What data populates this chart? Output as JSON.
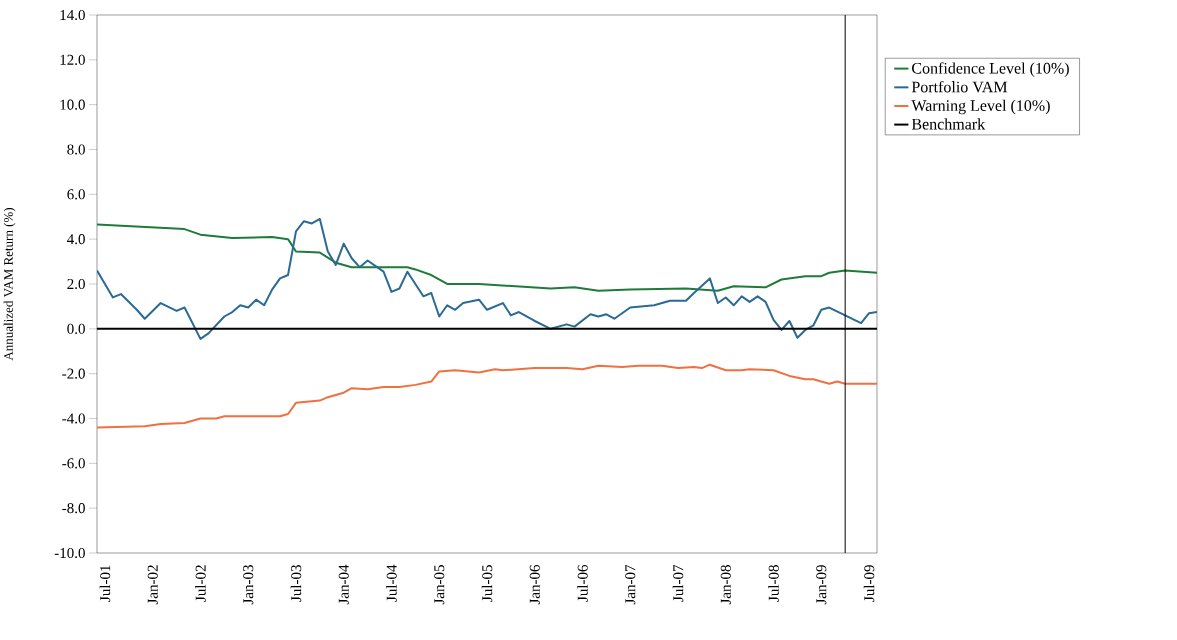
{
  "chart_data": {
    "type": "line",
    "ylabel": "Annualized VAM Return (%)",
    "xlim": [
      "2001-06",
      "2009-08"
    ],
    "ylim": [
      -10,
      14
    ],
    "xticks": [
      {
        "value": "2001-07",
        "label": "Jul-01"
      },
      {
        "value": "2002-01",
        "label": "Jan-02"
      },
      {
        "value": "2002-07",
        "label": "Jul-02"
      },
      {
        "value": "2003-01",
        "label": "Jan-03"
      },
      {
        "value": "2003-07",
        "label": "Jul-03"
      },
      {
        "value": "2004-01",
        "label": "Jan-04"
      },
      {
        "value": "2004-07",
        "label": "Jul-04"
      },
      {
        "value": "2005-01",
        "label": "Jan-05"
      },
      {
        "value": "2005-07",
        "label": "Jul-05"
      },
      {
        "value": "2006-01",
        "label": "Jan-06"
      },
      {
        "value": "2006-07",
        "label": "Jul-06"
      },
      {
        "value": "2007-01",
        "label": "Jan-07"
      },
      {
        "value": "2007-07",
        "label": "Jul-07"
      },
      {
        "value": "2008-01",
        "label": "Jan-08"
      },
      {
        "value": "2008-07",
        "label": "Jul-08"
      },
      {
        "value": "2009-01",
        "label": "Jan-09"
      },
      {
        "value": "2009-07",
        "label": "Jul-09"
      }
    ],
    "yticks": [
      {
        "value": -10,
        "label": "-10.0"
      },
      {
        "value": -8,
        "label": "-8.0"
      },
      {
        "value": -6,
        "label": "-6.0"
      },
      {
        "value": -4,
        "label": "-4.0"
      },
      {
        "value": -2,
        "label": "-2.0"
      },
      {
        "value": 0,
        "label": "0.0"
      },
      {
        "value": 2,
        "label": "2.0"
      },
      {
        "value": 4,
        "label": "4.0"
      },
      {
        "value": 6,
        "label": "6.0"
      },
      {
        "value": 8,
        "label": "8.0"
      },
      {
        "value": 10,
        "label": "10.0"
      },
      {
        "value": 12,
        "label": "12.0"
      },
      {
        "value": 14,
        "label": "14.0"
      }
    ],
    "legend": "right",
    "marker": "none",
    "line_style": "solid",
    "ref_lines": [
      {
        "axis": "x",
        "value": "2009-04",
        "color": "#000000"
      }
    ],
    "series": [
      {
        "name": "Confidence Level (10%)",
        "color": "#1e7b3a",
        "x": [
          "2001-06",
          "2002-05",
          "2002-07",
          "2002-11",
          "2003-04",
          "2003-06",
          "2003-07",
          "2003-10",
          "2003-12",
          "2004-02",
          "2004-09",
          "2004-10",
          "2004-12",
          "2005-02",
          "2005-06",
          "2006-03",
          "2006-06",
          "2006-09",
          "2007-01",
          "2007-08",
          "2007-12",
          "2008-02",
          "2008-06",
          "2008-08",
          "2008-11",
          "2009-01",
          "2009-02",
          "2009-04",
          "2009-08"
        ],
        "values": [
          4.65,
          4.45,
          4.2,
          4.05,
          4.1,
          4.0,
          3.45,
          3.4,
          2.95,
          2.75,
          2.75,
          2.65,
          2.4,
          2.0,
          2.0,
          1.8,
          1.85,
          1.7,
          1.75,
          1.8,
          1.7,
          1.9,
          1.85,
          2.2,
          2.35,
          2.35,
          2.5,
          2.6,
          2.5
        ]
      },
      {
        "name": "Portfolio VAM",
        "color": "#2a6a94",
        "x": [
          "2001-06",
          "2001-08",
          "2001-09",
          "2001-11",
          "2001-12",
          "2002-02",
          "2002-04",
          "2002-05",
          "2002-07",
          "2002-08",
          "2002-10",
          "2002-11",
          "2002-12",
          "2003-01",
          "2003-02",
          "2003-03",
          "2003-04",
          "2003-05",
          "2003-06",
          "2003-07",
          "2003-08",
          "2003-09",
          "2003-10",
          "2003-11",
          "2003-12",
          "2004-01",
          "2004-02",
          "2004-03",
          "2004-04",
          "2004-06",
          "2004-07",
          "2004-08",
          "2004-09",
          "2004-11",
          "2004-12",
          "2005-01",
          "2005-02",
          "2005-03",
          "2005-04",
          "2005-06",
          "2005-07",
          "2005-09",
          "2005-10",
          "2005-11",
          "2006-01",
          "2006-03",
          "2006-05",
          "2006-06",
          "2006-08",
          "2006-09",
          "2006-10",
          "2006-11",
          "2007-01",
          "2007-04",
          "2007-06",
          "2007-08",
          "2007-09",
          "2007-11",
          "2007-12",
          "2008-01",
          "2008-02",
          "2008-03",
          "2008-04",
          "2008-05",
          "2008-06",
          "2008-07",
          "2008-08",
          "2008-09",
          "2008-10",
          "2008-11",
          "2008-12",
          "2009-01",
          "2009-02",
          "2009-04",
          "2009-06",
          "2009-07",
          "2009-08"
        ],
        "values": [
          2.6,
          1.4,
          1.55,
          0.85,
          0.45,
          1.15,
          0.8,
          0.95,
          -0.45,
          -0.2,
          0.55,
          0.75,
          1.05,
          0.95,
          1.3,
          1.05,
          1.75,
          2.25,
          2.4,
          4.35,
          4.8,
          4.7,
          4.9,
          3.45,
          2.85,
          3.8,
          3.15,
          2.75,
          3.05,
          2.55,
          1.65,
          1.8,
          2.55,
          1.45,
          1.6,
          0.55,
          1.05,
          0.85,
          1.15,
          1.3,
          0.85,
          1.15,
          0.6,
          0.75,
          0.35,
          0.0,
          0.2,
          0.1,
          0.65,
          0.55,
          0.65,
          0.45,
          0.95,
          1.05,
          1.25,
          1.25,
          1.6,
          2.25,
          1.15,
          1.4,
          1.05,
          1.45,
          1.2,
          1.45,
          1.2,
          0.4,
          -0.05,
          0.35,
          -0.4,
          -0.05,
          0.15,
          0.85,
          0.95,
          0.6,
          0.25,
          0.7,
          0.75
        ]
      },
      {
        "name": "Warning Level (10%)",
        "color": "#f07040",
        "x": [
          "2001-06",
          "2001-12",
          "2002-02",
          "2002-05",
          "2002-07",
          "2002-09",
          "2002-10",
          "2003-05",
          "2003-06",
          "2003-07",
          "2003-10",
          "2003-11",
          "2004-01",
          "2004-02",
          "2004-04",
          "2004-06",
          "2004-08",
          "2004-10",
          "2004-12",
          "2005-01",
          "2005-03",
          "2005-06",
          "2005-08",
          "2005-09",
          "2006-01",
          "2006-05",
          "2006-07",
          "2006-09",
          "2006-12",
          "2007-02",
          "2007-05",
          "2007-07",
          "2007-09",
          "2007-10",
          "2007-11",
          "2008-01",
          "2008-03",
          "2008-04",
          "2008-07",
          "2008-09",
          "2008-11",
          "2008-12",
          "2009-02",
          "2009-03",
          "2009-04",
          "2009-08"
        ],
        "values": [
          -4.4,
          -4.35,
          -4.25,
          -4.2,
          -4.0,
          -4.0,
          -3.9,
          -3.9,
          -3.8,
          -3.3,
          -3.2,
          -3.05,
          -2.85,
          -2.65,
          -2.7,
          -2.6,
          -2.6,
          -2.5,
          -2.35,
          -1.9,
          -1.85,
          -1.95,
          -1.8,
          -1.85,
          -1.75,
          -1.75,
          -1.8,
          -1.65,
          -1.7,
          -1.65,
          -1.65,
          -1.75,
          -1.7,
          -1.75,
          -1.6,
          -1.85,
          -1.85,
          -1.8,
          -1.85,
          -2.1,
          -2.25,
          -2.25,
          -2.45,
          -2.35,
          -2.45,
          -2.45
        ]
      },
      {
        "name": "Benchmark",
        "color": "#000000",
        "x": [
          "2001-06",
          "2009-08"
        ],
        "values": [
          0,
          0
        ]
      }
    ]
  }
}
